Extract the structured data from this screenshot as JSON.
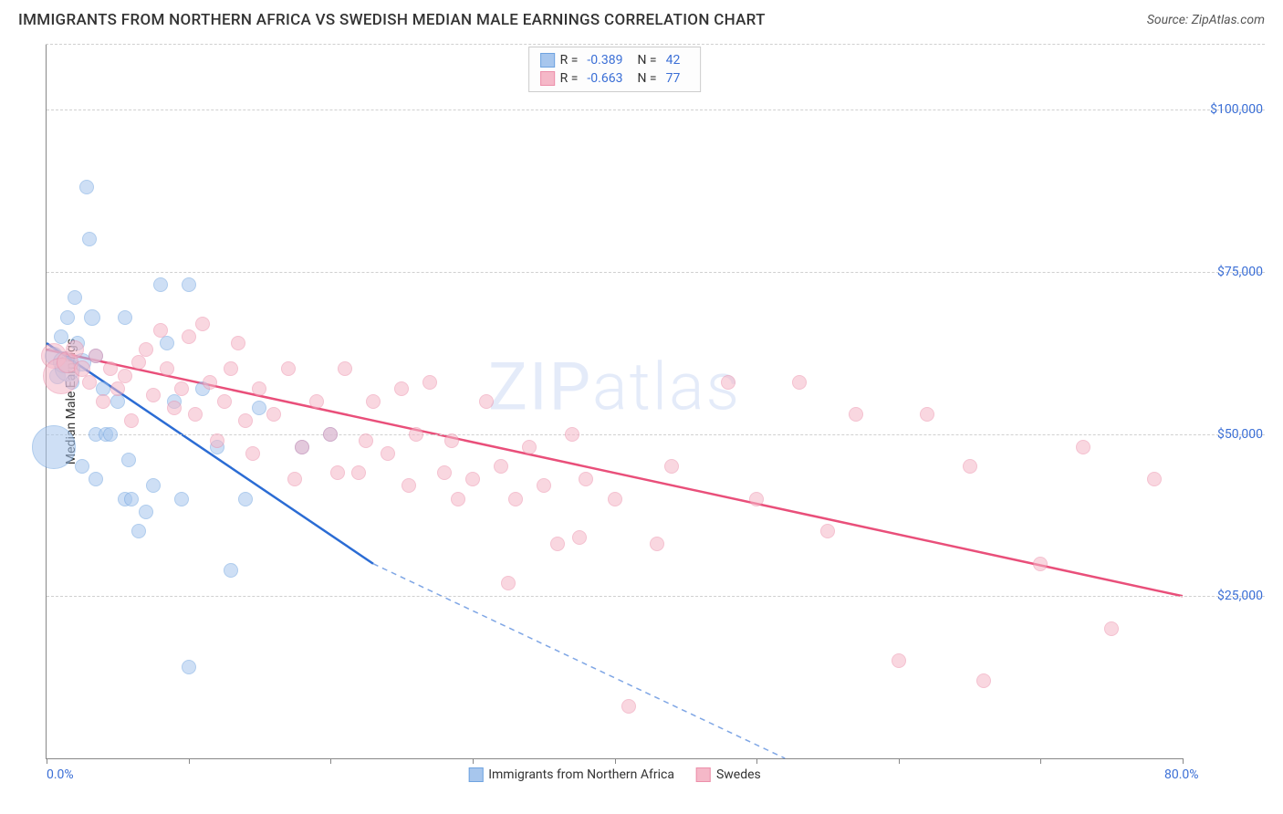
{
  "header": {
    "title": "IMMIGRANTS FROM NORTHERN AFRICA VS SWEDISH MEDIAN MALE EARNINGS CORRELATION CHART",
    "source": "Source: ZipAtlas.com"
  },
  "watermark": {
    "zip": "ZIP",
    "atlas": "atlas"
  },
  "chart": {
    "type": "scatter",
    "ylabel": "Median Male Earnings",
    "xlim": [
      0,
      80
    ],
    "ylim": [
      0,
      110000
    ],
    "x_ticks": [
      0,
      10,
      20,
      30,
      40,
      50,
      60,
      70,
      80
    ],
    "x_tick_labels": {
      "min": "0.0%",
      "max": "80.0%"
    },
    "y_gridlines": [
      25000,
      50000,
      75000,
      100000
    ],
    "y_tick_labels": [
      "$25,000",
      "$50,000",
      "$75,000",
      "$100,000"
    ],
    "background_color": "#ffffff",
    "grid_color": "#d0d0d0",
    "axis_color": "#888888",
    "label_color": "#3b6fd6",
    "series": [
      {
        "name": "Immigrants from Northern Africa",
        "fill": "#a7c6ed",
        "fill_opacity": 0.55,
        "stroke": "#6fa3e0",
        "line_color": "#2b6cd4",
        "R": "-0.389",
        "N": "42",
        "trend": {
          "x1": 0,
          "y1": 64000,
          "x2": 23,
          "y2": 30000,
          "dash_to_x": 52,
          "dash_to_y": 0
        },
        "points": [
          {
            "x": 0.5,
            "y": 62000,
            "r": 10
          },
          {
            "x": 0.5,
            "y": 48000,
            "r": 24
          },
          {
            "x": 0.8,
            "y": 59000,
            "r": 9
          },
          {
            "x": 1.0,
            "y": 65000,
            "r": 8
          },
          {
            "x": 1.2,
            "y": 61000,
            "r": 12
          },
          {
            "x": 1.5,
            "y": 68000,
            "r": 8
          },
          {
            "x": 1.5,
            "y": 60000,
            "r": 14
          },
          {
            "x": 1.8,
            "y": 58000,
            "r": 8
          },
          {
            "x": 2.0,
            "y": 71000,
            "r": 8
          },
          {
            "x": 2.2,
            "y": 64000,
            "r": 8
          },
          {
            "x": 2.5,
            "y": 61000,
            "r": 10
          },
          {
            "x": 2.5,
            "y": 45000,
            "r": 8
          },
          {
            "x": 2.8,
            "y": 88000,
            "r": 8
          },
          {
            "x": 3.0,
            "y": 80000,
            "r": 8
          },
          {
            "x": 3.2,
            "y": 68000,
            "r": 9
          },
          {
            "x": 3.5,
            "y": 62000,
            "r": 8
          },
          {
            "x": 3.5,
            "y": 50000,
            "r": 8
          },
          {
            "x": 3.5,
            "y": 43000,
            "r": 8
          },
          {
            "x": 4.0,
            "y": 57000,
            "r": 8
          },
          {
            "x": 4.2,
            "y": 50000,
            "r": 8
          },
          {
            "x": 4.5,
            "y": 50000,
            "r": 8
          },
          {
            "x": 5.0,
            "y": 55000,
            "r": 8
          },
          {
            "x": 5.5,
            "y": 68000,
            "r": 8
          },
          {
            "x": 5.5,
            "y": 40000,
            "r": 8
          },
          {
            "x": 5.8,
            "y": 46000,
            "r": 8
          },
          {
            "x": 6.0,
            "y": 40000,
            "r": 8
          },
          {
            "x": 6.5,
            "y": 35000,
            "r": 8
          },
          {
            "x": 7.0,
            "y": 38000,
            "r": 8
          },
          {
            "x": 7.5,
            "y": 42000,
            "r": 8
          },
          {
            "x": 8.0,
            "y": 73000,
            "r": 8
          },
          {
            "x": 8.5,
            "y": 64000,
            "r": 8
          },
          {
            "x": 9.0,
            "y": 55000,
            "r": 8
          },
          {
            "x": 9.5,
            "y": 40000,
            "r": 8
          },
          {
            "x": 10.0,
            "y": 73000,
            "r": 8
          },
          {
            "x": 10.0,
            "y": 14000,
            "r": 8
          },
          {
            "x": 11.0,
            "y": 57000,
            "r": 8
          },
          {
            "x": 12.0,
            "y": 48000,
            "r": 8
          },
          {
            "x": 13.0,
            "y": 29000,
            "r": 8
          },
          {
            "x": 14.0,
            "y": 40000,
            "r": 8
          },
          {
            "x": 15.0,
            "y": 54000,
            "r": 8
          },
          {
            "x": 18.0,
            "y": 48000,
            "r": 8
          },
          {
            "x": 20.0,
            "y": 50000,
            "r": 8
          }
        ]
      },
      {
        "name": "Swedes",
        "fill": "#f5b8c8",
        "fill_opacity": 0.55,
        "stroke": "#ec8faa",
        "line_color": "#e94f7a",
        "R": "-0.663",
        "N": "77",
        "trend": {
          "x1": 0,
          "y1": 63000,
          "x2": 80,
          "y2": 25000
        },
        "points": [
          {
            "x": 0.5,
            "y": 62000,
            "r": 14
          },
          {
            "x": 1.0,
            "y": 59000,
            "r": 20
          },
          {
            "x": 1.5,
            "y": 61000,
            "r": 12
          },
          {
            "x": 2.0,
            "y": 63000,
            "r": 10
          },
          {
            "x": 2.5,
            "y": 60000,
            "r": 9
          },
          {
            "x": 3.0,
            "y": 58000,
            "r": 8
          },
          {
            "x": 3.5,
            "y": 62000,
            "r": 8
          },
          {
            "x": 4.0,
            "y": 55000,
            "r": 8
          },
          {
            "x": 4.5,
            "y": 60000,
            "r": 8
          },
          {
            "x": 5.0,
            "y": 57000,
            "r": 8
          },
          {
            "x": 5.5,
            "y": 59000,
            "r": 8
          },
          {
            "x": 6.0,
            "y": 52000,
            "r": 8
          },
          {
            "x": 6.5,
            "y": 61000,
            "r": 8
          },
          {
            "x": 7.0,
            "y": 63000,
            "r": 8
          },
          {
            "x": 7.5,
            "y": 56000,
            "r": 8
          },
          {
            "x": 8.0,
            "y": 66000,
            "r": 8
          },
          {
            "x": 8.5,
            "y": 60000,
            "r": 8
          },
          {
            "x": 9.0,
            "y": 54000,
            "r": 8
          },
          {
            "x": 9.5,
            "y": 57000,
            "r": 8
          },
          {
            "x": 10.0,
            "y": 65000,
            "r": 8
          },
          {
            "x": 10.5,
            "y": 53000,
            "r": 8
          },
          {
            "x": 11.0,
            "y": 67000,
            "r": 8
          },
          {
            "x": 11.5,
            "y": 58000,
            "r": 8
          },
          {
            "x": 12.0,
            "y": 49000,
            "r": 8
          },
          {
            "x": 12.5,
            "y": 55000,
            "r": 8
          },
          {
            "x": 13.0,
            "y": 60000,
            "r": 8
          },
          {
            "x": 13.5,
            "y": 64000,
            "r": 8
          },
          {
            "x": 14.0,
            "y": 52000,
            "r": 8
          },
          {
            "x": 14.5,
            "y": 47000,
            "r": 8
          },
          {
            "x": 15.0,
            "y": 57000,
            "r": 8
          },
          {
            "x": 16.0,
            "y": 53000,
            "r": 8
          },
          {
            "x": 17.0,
            "y": 60000,
            "r": 8
          },
          {
            "x": 17.5,
            "y": 43000,
            "r": 8
          },
          {
            "x": 18.0,
            "y": 48000,
            "r": 8
          },
          {
            "x": 19.0,
            "y": 55000,
            "r": 8
          },
          {
            "x": 20.0,
            "y": 50000,
            "r": 8
          },
          {
            "x": 20.5,
            "y": 44000,
            "r": 8
          },
          {
            "x": 21.0,
            "y": 60000,
            "r": 8
          },
          {
            "x": 22.0,
            "y": 44000,
            "r": 8
          },
          {
            "x": 22.5,
            "y": 49000,
            "r": 8
          },
          {
            "x": 23.0,
            "y": 55000,
            "r": 8
          },
          {
            "x": 24.0,
            "y": 47000,
            "r": 8
          },
          {
            "x": 25.0,
            "y": 57000,
            "r": 8
          },
          {
            "x": 25.5,
            "y": 42000,
            "r": 8
          },
          {
            "x": 26.0,
            "y": 50000,
            "r": 8
          },
          {
            "x": 27.0,
            "y": 58000,
            "r": 8
          },
          {
            "x": 28.0,
            "y": 44000,
            "r": 8
          },
          {
            "x": 28.5,
            "y": 49000,
            "r": 8
          },
          {
            "x": 29.0,
            "y": 40000,
            "r": 8
          },
          {
            "x": 30.0,
            "y": 43000,
            "r": 8
          },
          {
            "x": 31.0,
            "y": 55000,
            "r": 8
          },
          {
            "x": 32.0,
            "y": 45000,
            "r": 8
          },
          {
            "x": 32.5,
            "y": 27000,
            "r": 8
          },
          {
            "x": 33.0,
            "y": 40000,
            "r": 8
          },
          {
            "x": 34.0,
            "y": 48000,
            "r": 8
          },
          {
            "x": 35.0,
            "y": 42000,
            "r": 8
          },
          {
            "x": 36.0,
            "y": 33000,
            "r": 8
          },
          {
            "x": 37.0,
            "y": 50000,
            "r": 8
          },
          {
            "x": 37.5,
            "y": 34000,
            "r": 8
          },
          {
            "x": 38.0,
            "y": 43000,
            "r": 8
          },
          {
            "x": 40.0,
            "y": 40000,
            "r": 8
          },
          {
            "x": 41.0,
            "y": 8000,
            "r": 8
          },
          {
            "x": 43.0,
            "y": 33000,
            "r": 8
          },
          {
            "x": 44.0,
            "y": 45000,
            "r": 8
          },
          {
            "x": 48.0,
            "y": 58000,
            "r": 8
          },
          {
            "x": 50.0,
            "y": 40000,
            "r": 8
          },
          {
            "x": 53.0,
            "y": 58000,
            "r": 8
          },
          {
            "x": 55.0,
            "y": 35000,
            "r": 8
          },
          {
            "x": 57.0,
            "y": 53000,
            "r": 8
          },
          {
            "x": 60.0,
            "y": 15000,
            "r": 8
          },
          {
            "x": 62.0,
            "y": 53000,
            "r": 8
          },
          {
            "x": 65.0,
            "y": 45000,
            "r": 8
          },
          {
            "x": 66.0,
            "y": 12000,
            "r": 8
          },
          {
            "x": 70.0,
            "y": 30000,
            "r": 8
          },
          {
            "x": 73.0,
            "y": 48000,
            "r": 8
          },
          {
            "x": 75.0,
            "y": 20000,
            "r": 8
          },
          {
            "x": 78.0,
            "y": 43000,
            "r": 8
          }
        ]
      }
    ],
    "legend_top_labels": {
      "R": "R =",
      "N": "N ="
    },
    "legend_bottom": [
      {
        "label": "Immigrants from Northern Africa",
        "fill": "#a7c6ed",
        "stroke": "#6fa3e0"
      },
      {
        "label": "Swedes",
        "fill": "#f5b8c8",
        "stroke": "#ec8faa"
      }
    ]
  }
}
